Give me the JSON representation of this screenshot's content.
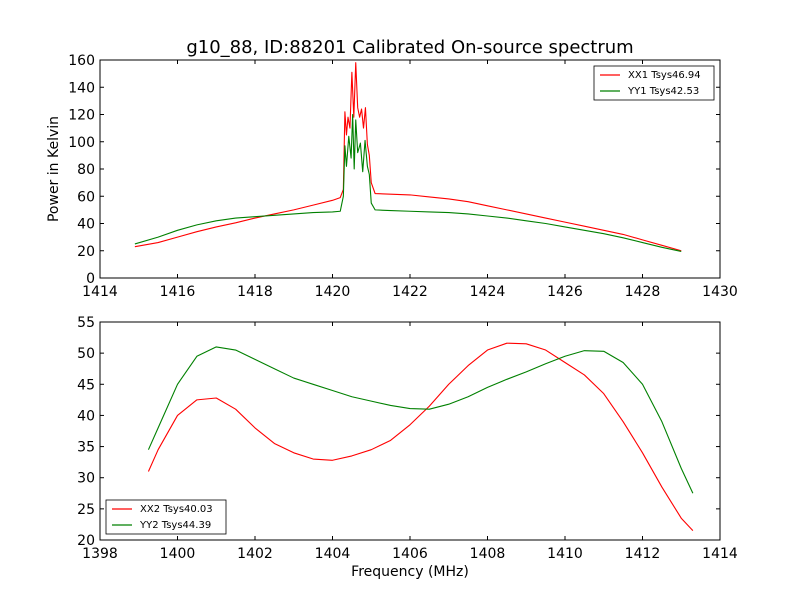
{
  "chart_data": [
    {
      "type": "line",
      "title": "g10_88, ID:88201 Calibrated On-source spectrum",
      "xlabel": "",
      "ylabel": "Power in Kelvin",
      "xlim": [
        1414,
        1430
      ],
      "ylim": [
        0,
        160
      ],
      "xticks": [
        1414,
        1416,
        1418,
        1420,
        1422,
        1424,
        1426,
        1428,
        1430
      ],
      "yticks": [
        0,
        20,
        40,
        60,
        80,
        100,
        120,
        140,
        160
      ],
      "legend_position": "top-right",
      "series": [
        {
          "name": "XX1 Tsys46.94",
          "color": "#ff0000",
          "points": [
            [
              1414.9,
              23
            ],
            [
              1415.5,
              26
            ],
            [
              1416,
              30
            ],
            [
              1416.5,
              34
            ],
            [
              1417,
              37.5
            ],
            [
              1417.5,
              40.5
            ],
            [
              1418,
              44
            ],
            [
              1418.5,
              47
            ],
            [
              1419,
              50
            ],
            [
              1419.5,
              53.5
            ],
            [
              1420,
              57
            ],
            [
              1420.2,
              59
            ],
            [
              1420.28,
              65
            ],
            [
              1420.32,
              122
            ],
            [
              1420.36,
              105
            ],
            [
              1420.4,
              118
            ],
            [
              1420.45,
              110
            ],
            [
              1420.5,
              151
            ],
            [
              1420.55,
              118
            ],
            [
              1420.6,
              158
            ],
            [
              1420.65,
              125
            ],
            [
              1420.7,
              118
            ],
            [
              1420.75,
              124
            ],
            [
              1420.8,
              110
            ],
            [
              1420.85,
              125
            ],
            [
              1420.9,
              98
            ],
            [
              1420.95,
              90
            ],
            [
              1421.0,
              70
            ],
            [
              1421.1,
              62
            ],
            [
              1421.5,
              61.5
            ],
            [
              1422,
              61
            ],
            [
              1422.5,
              59.5
            ],
            [
              1423,
              58
            ],
            [
              1423.5,
              56
            ],
            [
              1424,
              53
            ],
            [
              1424.5,
              50
            ],
            [
              1425,
              47
            ],
            [
              1425.5,
              44
            ],
            [
              1426,
              41
            ],
            [
              1426.5,
              38
            ],
            [
              1427,
              35
            ],
            [
              1427.5,
              32
            ],
            [
              1428,
              28
            ],
            [
              1428.5,
              24
            ],
            [
              1429,
              20
            ]
          ]
        },
        {
          "name": "YY1 Tsys42.53",
          "color": "#008000",
          "points": [
            [
              1414.9,
              25
            ],
            [
              1415.5,
              30
            ],
            [
              1416,
              35
            ],
            [
              1416.5,
              39
            ],
            [
              1417,
              42
            ],
            [
              1417.5,
              44
            ],
            [
              1418,
              45
            ],
            [
              1418.5,
              46
            ],
            [
              1419,
              47
            ],
            [
              1419.5,
              48
            ],
            [
              1420,
              48.5
            ],
            [
              1420.2,
              49
            ],
            [
              1420.28,
              60
            ],
            [
              1420.32,
              97
            ],
            [
              1420.36,
              82
            ],
            [
              1420.42,
              104
            ],
            [
              1420.48,
              88
            ],
            [
              1420.52,
              120
            ],
            [
              1420.56,
              80
            ],
            [
              1420.6,
              116
            ],
            [
              1420.65,
              92
            ],
            [
              1420.72,
              99
            ],
            [
              1420.78,
              78
            ],
            [
              1420.84,
              101
            ],
            [
              1420.9,
              82
            ],
            [
              1420.95,
              76
            ],
            [
              1421.0,
              55
            ],
            [
              1421.1,
              50
            ],
            [
              1421.5,
              49.5
            ],
            [
              1422,
              49
            ],
            [
              1422.5,
              48.5
            ],
            [
              1423,
              48
            ],
            [
              1423.5,
              47
            ],
            [
              1424,
              45.5
            ],
            [
              1424.5,
              44
            ],
            [
              1425,
              42
            ],
            [
              1425.5,
              40
            ],
            [
              1426,
              37.5
            ],
            [
              1426.5,
              35
            ],
            [
              1427,
              32.5
            ],
            [
              1427.5,
              29.5
            ],
            [
              1428,
              26
            ],
            [
              1428.5,
              22.5
            ],
            [
              1429,
              19.5
            ]
          ]
        }
      ]
    },
    {
      "type": "line",
      "title": "",
      "xlabel": "Frequency (MHz)",
      "ylabel": "",
      "xlim": [
        1398,
        1414
      ],
      "ylim": [
        20,
        55
      ],
      "xticks": [
        1398,
        1400,
        1402,
        1404,
        1406,
        1408,
        1410,
        1412,
        1414
      ],
      "yticks": [
        20,
        25,
        30,
        35,
        40,
        45,
        50,
        55
      ],
      "legend_position": "bottom-left",
      "series": [
        {
          "name": "XX2 Tsys40.03",
          "color": "#ff0000",
          "points": [
            [
              1399.25,
              31
            ],
            [
              1399.5,
              34.5
            ],
            [
              1400,
              40
            ],
            [
              1400.5,
              42.5
            ],
            [
              1401,
              42.8
            ],
            [
              1401.5,
              41
            ],
            [
              1402,
              38
            ],
            [
              1402.5,
              35.5
            ],
            [
              1403,
              34
            ],
            [
              1403.5,
              33
            ],
            [
              1404,
              32.8
            ],
            [
              1404.5,
              33.5
            ],
            [
              1405,
              34.5
            ],
            [
              1405.5,
              36
            ],
            [
              1406,
              38.5
            ],
            [
              1406.5,
              41.5
            ],
            [
              1407,
              45
            ],
            [
              1407.5,
              48
            ],
            [
              1408,
              50.5
            ],
            [
              1408.5,
              51.6
            ],
            [
              1409,
              51.5
            ],
            [
              1409.5,
              50.5
            ],
            [
              1410,
              48.5
            ],
            [
              1410.5,
              46.5
            ],
            [
              1411,
              43.5
            ],
            [
              1411.5,
              39
            ],
            [
              1412,
              34
            ],
            [
              1412.5,
              28.5
            ],
            [
              1413,
              23.5
            ],
            [
              1413.3,
              21.5
            ]
          ]
        },
        {
          "name": "YY2 Tsys44.39",
          "color": "#008000",
          "points": [
            [
              1399.25,
              34.5
            ],
            [
              1399.5,
              38
            ],
            [
              1400,
              45
            ],
            [
              1400.5,
              49.5
            ],
            [
              1401,
              51
            ],
            [
              1401.5,
              50.5
            ],
            [
              1402,
              49
            ],
            [
              1402.5,
              47.5
            ],
            [
              1403,
              46
            ],
            [
              1403.5,
              45
            ],
            [
              1404,
              44
            ],
            [
              1404.5,
              43
            ],
            [
              1405,
              42.3
            ],
            [
              1405.5,
              41.6
            ],
            [
              1406,
              41.1
            ],
            [
              1406.5,
              41
            ],
            [
              1407,
              41.8
            ],
            [
              1407.5,
              43
            ],
            [
              1408,
              44.5
            ],
            [
              1408.5,
              45.8
            ],
            [
              1409,
              47
            ],
            [
              1409.5,
              48.3
            ],
            [
              1410,
              49.5
            ],
            [
              1410.5,
              50.4
            ],
            [
              1411,
              50.3
            ],
            [
              1411.5,
              48.5
            ],
            [
              1412,
              45
            ],
            [
              1412.5,
              39
            ],
            [
              1413,
              31.5
            ],
            [
              1413.3,
              27.5
            ]
          ]
        }
      ]
    }
  ]
}
